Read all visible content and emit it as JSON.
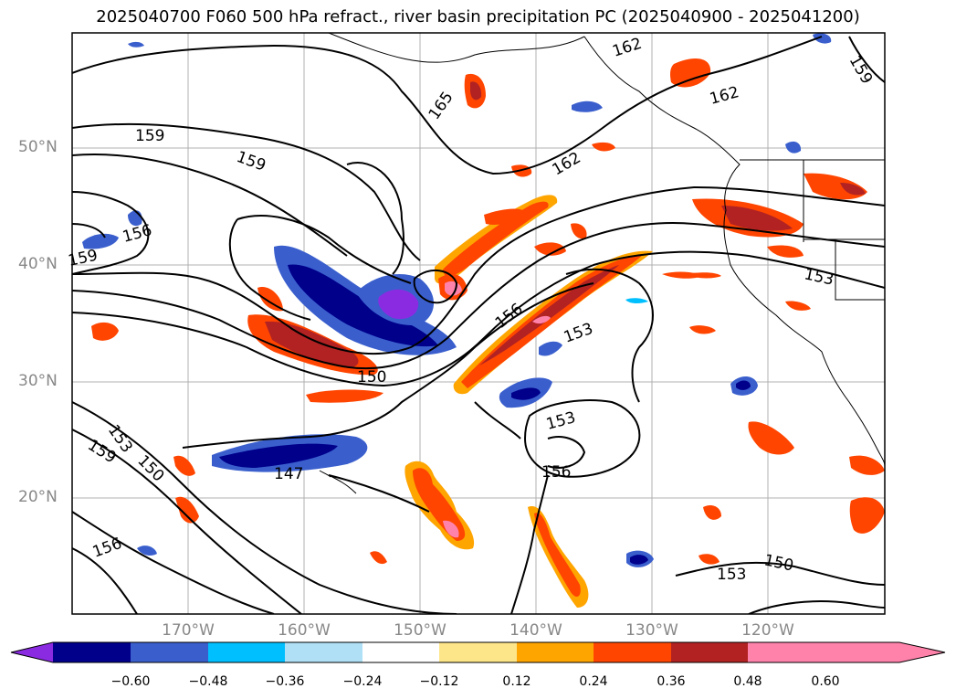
{
  "title": "2025040700 F060 500 hPa refract., river basin precipitation PC (2025040900 - 2025041200)",
  "map": {
    "lat_labels": [
      "50°N",
      "40°N",
      "30°N",
      "20°N"
    ],
    "lon_labels": [
      "170°W",
      "160°W",
      "150°W",
      "140°W",
      "130°W",
      "120°W"
    ],
    "contour_labels": [
      "162",
      "165",
      "159",
      "159",
      "162",
      "159",
      "162",
      "156",
      "159",
      "153",
      "156",
      "153",
      "150",
      "153",
      "153",
      "159",
      "150",
      "147",
      "156",
      "156",
      "150",
      "153"
    ]
  },
  "colorbar": {
    "tick_labels": [
      "−0.60",
      "−0.48",
      "−0.36",
      "−0.24",
      "−0.12",
      "0.12",
      "0.24",
      "0.36",
      "0.48",
      "0.60"
    ],
    "colors": [
      "#8a2be2",
      "#00008b",
      "#3a5fcd",
      "#00bfff",
      "#b0e0f6",
      "#ffffff",
      "#fde68a",
      "#ffa500",
      "#ff4500",
      "#b22222",
      "#ff82ab"
    ]
  }
}
